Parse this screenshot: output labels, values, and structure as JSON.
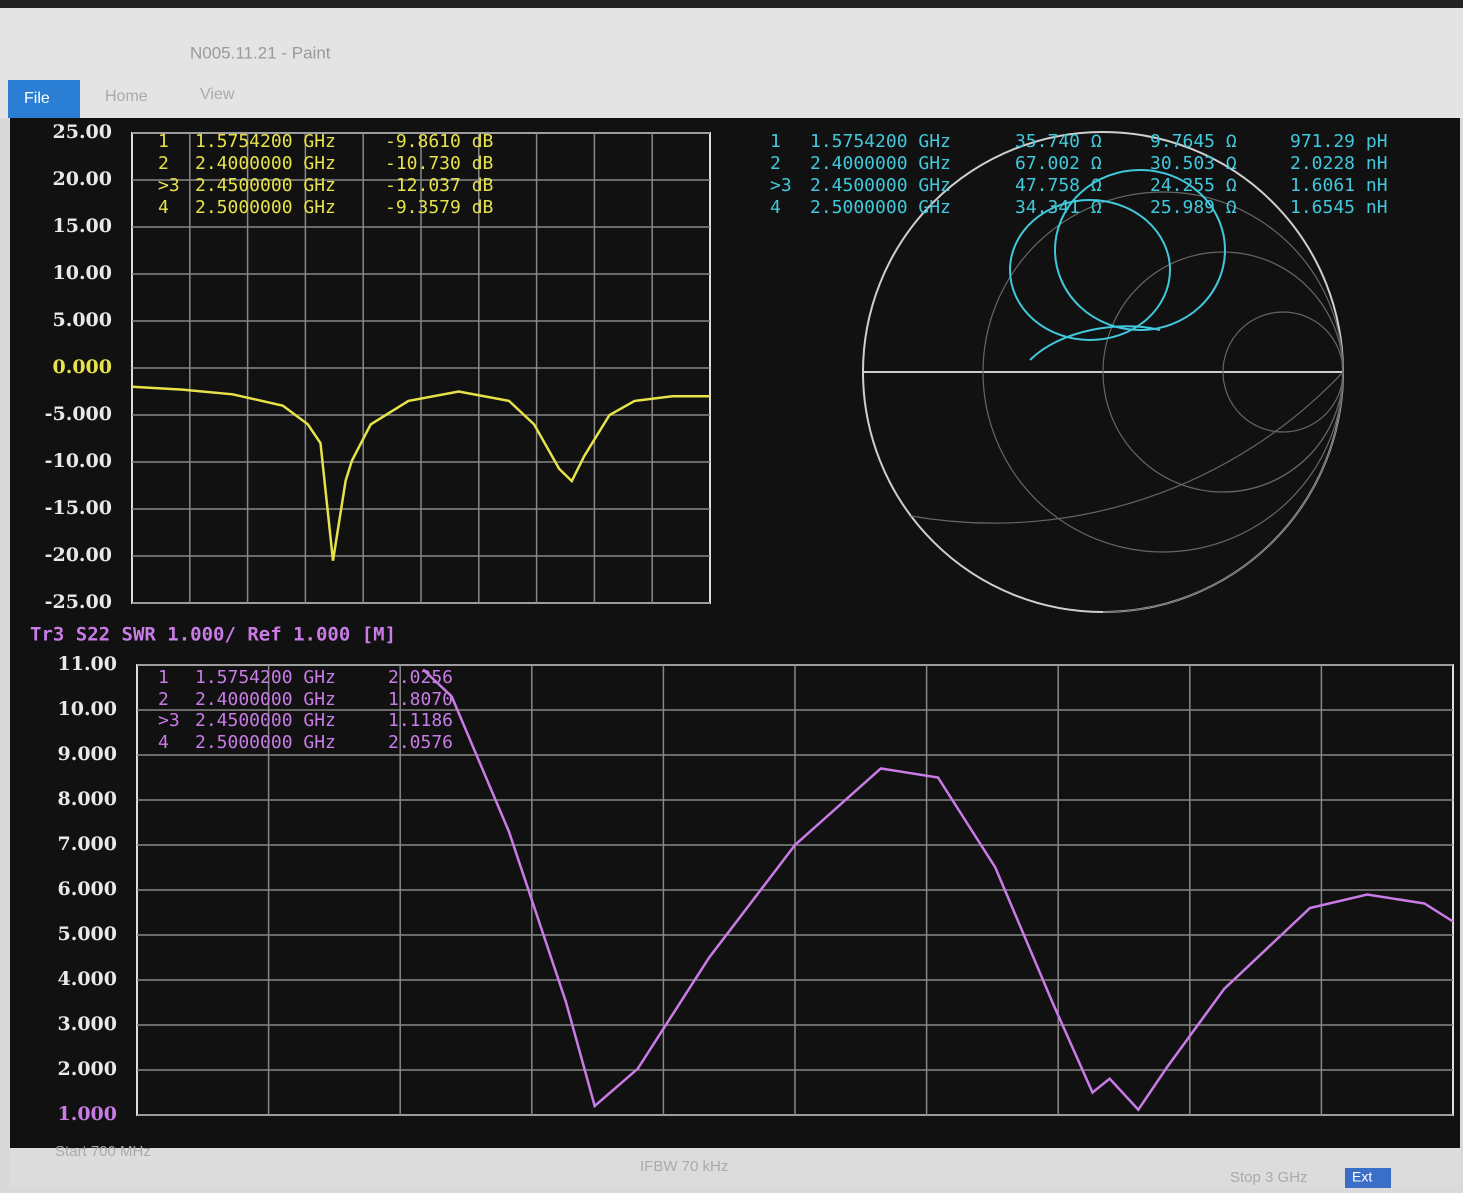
{
  "window": {
    "title": "N005.11.21 - Paint",
    "menu": [
      "File",
      "Home",
      "View"
    ]
  },
  "chart_data": [
    {
      "type": "line",
      "color": "#e8e24a",
      "ylim": [
        -25,
        25
      ],
      "xlim": [
        0.7,
        3.0
      ],
      "yticks": [
        {
          "value": 25,
          "label": "25.00"
        },
        {
          "value": 20,
          "label": "20.00"
        },
        {
          "value": 15,
          "label": "15.00"
        },
        {
          "value": 10,
          "label": "10.00"
        },
        {
          "value": 5,
          "label": "5.000"
        },
        {
          "value": 0,
          "label": "0.000"
        },
        {
          "value": -5,
          "label": "-5.000"
        },
        {
          "value": -10,
          "label": "-10.00"
        },
        {
          "value": -15,
          "label": "-15.00"
        },
        {
          "value": -20,
          "label": "-20.00"
        },
        {
          "value": -25,
          "label": "-25.00"
        }
      ],
      "x": [
        0.7,
        0.9,
        1.1,
        1.3,
        1.4,
        1.45,
        1.5,
        1.55,
        1.575,
        1.65,
        1.8,
        2.0,
        2.2,
        2.3,
        2.4,
        2.45,
        2.5,
        2.6,
        2.7,
        2.85,
        3.0
      ],
      "values": [
        -2,
        -2.3,
        -2.8,
        -4,
        -6,
        -8,
        -20.5,
        -12,
        -9.861,
        -6,
        -3.5,
        -2.5,
        -3.5,
        -6,
        -10.73,
        -12.037,
        -9.3579,
        -5,
        -3.5,
        -3,
        -3
      ],
      "markers": [
        {
          "id": "1",
          "freq": "1.5754200 GHz",
          "value": "-9.8610 dB"
        },
        {
          "id": "2",
          "freq": "2.4000000 GHz",
          "value": "-10.730 dB"
        },
        {
          "id": ">3",
          "freq": "2.4500000 GHz",
          "value": "-12.037 dB"
        },
        {
          "id": "4",
          "freq": "2.5000000 GHz",
          "value": "-9.3579 dB"
        }
      ]
    },
    {
      "type": "smith",
      "color": "#41c8dc",
      "markers": [
        {
          "id": "1",
          "freq": "1.5754200 GHz",
          "r": "35.740 Ω",
          "x": "9.7645 Ω",
          "l": "971.29 pH"
        },
        {
          "id": "2",
          "freq": "2.4000000 GHz",
          "r": "67.002 Ω",
          "x": "30.503 Ω",
          "l": "2.0228 nH"
        },
        {
          "id": ">3",
          "freq": "2.4500000 GHz",
          "r": "47.758 Ω",
          "x": "24.255 Ω",
          "l": "1.6061 nH"
        },
        {
          "id": "4",
          "freq": "2.5000000 GHz",
          "r": "34.341 Ω",
          "x": "25.989 Ω",
          "l": "1.6545 nH"
        }
      ]
    },
    {
      "type": "line",
      "color": "#c97be6",
      "title": "Tr3 S22 SWR 1.000/ Ref 1.000 [M]",
      "ylim": [
        1,
        11
      ],
      "xlim": [
        0.7,
        3.0
      ],
      "yticks": [
        {
          "value": 11,
          "label": "11.00"
        },
        {
          "value": 10,
          "label": "10.00"
        },
        {
          "value": 9,
          "label": "9.000"
        },
        {
          "value": 8,
          "label": "8.000"
        },
        {
          "value": 7,
          "label": "7.000"
        },
        {
          "value": 6,
          "label": "6.000"
        },
        {
          "value": 5,
          "label": "5.000"
        },
        {
          "value": 4,
          "label": "4.000"
        },
        {
          "value": 3,
          "label": "3.000"
        },
        {
          "value": 2,
          "label": "2.000"
        },
        {
          "value": 1,
          "label": "1.000"
        }
      ],
      "x": [
        1.2,
        1.25,
        1.35,
        1.45,
        1.5,
        1.575,
        1.7,
        1.85,
        2.0,
        2.1,
        2.2,
        2.3,
        2.37,
        2.4,
        2.45,
        2.5,
        2.6,
        2.75,
        2.85,
        2.95,
        3.0
      ],
      "values": [
        10.9,
        10.3,
        7.3,
        3.5,
        1.2,
        2.0256,
        4.5,
        7.0,
        8.7,
        8.5,
        6.5,
        3.5,
        1.5,
        1.807,
        1.1186,
        2.0576,
        3.8,
        5.6,
        5.9,
        5.7,
        5.3
      ],
      "markers": [
        {
          "id": "1",
          "freq": "1.5754200 GHz",
          "value": "2.0256"
        },
        {
          "id": "2",
          "freq": "2.4000000 GHz",
          "value": "1.8070"
        },
        {
          "id": ">3",
          "freq": "2.4500000 GHz",
          "value": "1.1186"
        },
        {
          "id": "4",
          "freq": "2.5000000 GHz",
          "value": "2.0576"
        }
      ]
    }
  ],
  "status": {
    "start": "Start 700 MHz",
    "ifbw": "IFBW 70 kHz",
    "stop": "Stop 3 GHz",
    "ext": "Ext"
  }
}
